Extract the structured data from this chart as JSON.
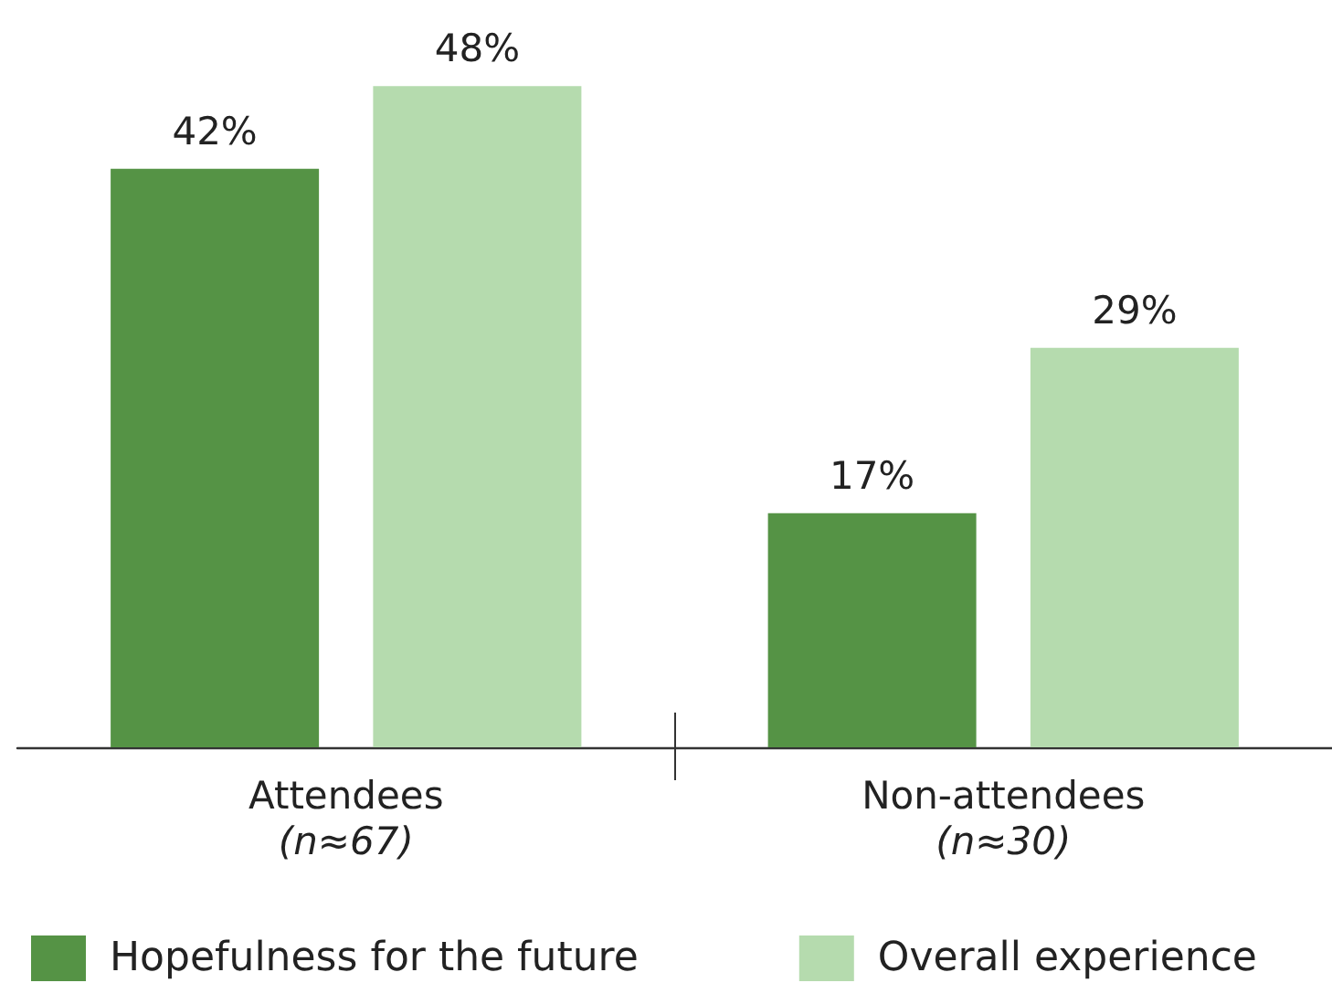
{
  "chart_data": {
    "type": "bar",
    "categories": [
      "Attendees\n(n≈67)",
      "Non-attendees\n(n≈30)"
    ],
    "series": [
      {
        "name": "Hopefulness for the future",
        "color": "#559345",
        "values": [
          42,
          17
        ],
        "value_labels": [
          "42%",
          "17%"
        ]
      },
      {
        "name": "Overall experience",
        "color": "#b5dbae",
        "values": [
          48,
          29
        ],
        "value_labels": [
          "48%",
          "29%"
        ]
      }
    ],
    "legend": "bottom left",
    "tick_labels": "x"
  }
}
